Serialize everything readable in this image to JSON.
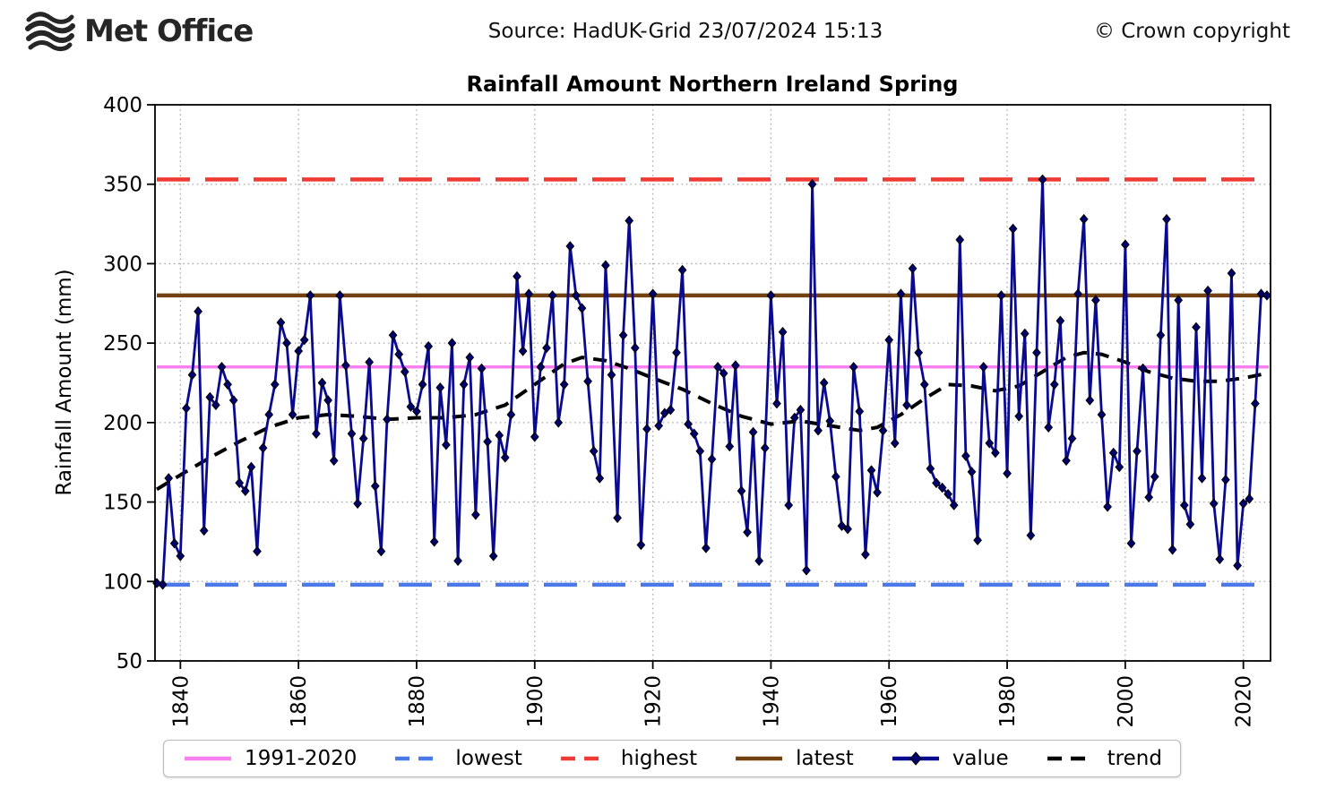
{
  "header": {
    "logo_text": "Met Office",
    "source": "Source: HadUK-Grid 23/07/2024 15:13",
    "copyright": "© Crown copyright"
  },
  "legend": {
    "items": [
      {
        "label": "1991-2020",
        "style": "solid",
        "color": "#f87ff0"
      },
      {
        "label": "lowest",
        "style": "dashed",
        "color": "#4b79e8"
      },
      {
        "label": "highest",
        "style": "dashed",
        "color": "#ef3b33"
      },
      {
        "label": "latest",
        "style": "solid",
        "color": "#72410f"
      },
      {
        "label": "value",
        "style": "marker",
        "color": "#0a0a90"
      },
      {
        "label": "trend",
        "style": "dashed",
        "color": "#000000"
      }
    ]
  },
  "chart_data": {
    "type": "line",
    "title": "Rainfall Amount Northern Ireland Spring",
    "xlabel": "",
    "ylabel": "Rainfall Amount (mm)",
    "ylim": [
      50,
      400
    ],
    "xlim": [
      1835.7,
      2024.6
    ],
    "yticks": [
      50,
      100,
      150,
      200,
      250,
      300,
      350,
      400
    ],
    "xticks": [
      1840,
      1860,
      1880,
      1900,
      1920,
      1940,
      1960,
      1980,
      2000,
      2020
    ],
    "grid": true,
    "legend_position": "bottom",
    "reference_lines": [
      {
        "name": "highest",
        "value": 353,
        "color": "#ef3b33",
        "dash": "37 17",
        "width": 4.5
      },
      {
        "name": "latest",
        "value": 280,
        "color": "#72410f",
        "dash": "",
        "width": 4.5
      },
      {
        "name": "1991-2020",
        "value": 235,
        "color": "#f87ff0",
        "dash": "",
        "width": 3.6
      },
      {
        "name": "lowest",
        "value": 98,
        "color": "#4b79e8",
        "dash": "37 17",
        "width": 4.5
      }
    ],
    "series": [
      {
        "name": "value",
        "color": "#0a0a90",
        "marker": "diamond",
        "start_year": 1836,
        "values": [
          99,
          98,
          165,
          124,
          116,
          209,
          230,
          270,
          132,
          216,
          211,
          235,
          224,
          214,
          162,
          157,
          172,
          119,
          184,
          205,
          224,
          263,
          250,
          205,
          245,
          252,
          280,
          193,
          225,
          214,
          176,
          280,
          236,
          193,
          149,
          190,
          238,
          160,
          119,
          202,
          255,
          243,
          232,
          210,
          207,
          224,
          248,
          125,
          222,
          186,
          250,
          113,
          224,
          241,
          142,
          234,
          188,
          116,
          192,
          178,
          205,
          292,
          245,
          281,
          191,
          235,
          247,
          280,
          200,
          224,
          311,
          280,
          272,
          226,
          182,
          165,
          299,
          230,
          140,
          255,
          327,
          247,
          123,
          196,
          281,
          198,
          206,
          208,
          244,
          296,
          199,
          193,
          182,
          121,
          177,
          235,
          231,
          185,
          236,
          157,
          131,
          194,
          113,
          184,
          280,
          212,
          257,
          148,
          203,
          208,
          107,
          350,
          195,
          225,
          201,
          166,
          135,
          133,
          235,
          207,
          117,
          170,
          156,
          195,
          252,
          187,
          281,
          211,
          297,
          244,
          224,
          171,
          162,
          159,
          155,
          148,
          315,
          179,
          169,
          126,
          235,
          187,
          181,
          280,
          168,
          322,
          204,
          256,
          129,
          244,
          353,
          197,
          224,
          264,
          176,
          190,
          281,
          328,
          214,
          277,
          205,
          147,
          181,
          172,
          312,
          124,
          182,
          234,
          153,
          166,
          255,
          328,
          120,
          277,
          148,
          136,
          260,
          165,
          283,
          149,
          114,
          164,
          294,
          110,
          149,
          152,
          212,
          281,
          280
        ]
      }
    ],
    "trend": {
      "name": "trend",
      "color": "#000000",
      "points": [
        [
          1836,
          158
        ],
        [
          1840,
          167
        ],
        [
          1845,
          178
        ],
        [
          1850,
          188
        ],
        [
          1855,
          197
        ],
        [
          1860,
          203
        ],
        [
          1865,
          205
        ],
        [
          1870,
          204
        ],
        [
          1875,
          202
        ],
        [
          1880,
          203
        ],
        [
          1885,
          203
        ],
        [
          1890,
          205
        ],
        [
          1895,
          211
        ],
        [
          1900,
          224
        ],
        [
          1905,
          237
        ],
        [
          1908,
          241
        ],
        [
          1912,
          239
        ],
        [
          1916,
          234
        ],
        [
          1920,
          228
        ],
        [
          1925,
          221
        ],
        [
          1930,
          212
        ],
        [
          1935,
          204
        ],
        [
          1940,
          199
        ],
        [
          1945,
          201
        ],
        [
          1950,
          198
        ],
        [
          1955,
          195
        ],
        [
          1958,
          197
        ],
        [
          1962,
          205
        ],
        [
          1966,
          215
        ],
        [
          1970,
          224
        ],
        [
          1974,
          223
        ],
        [
          1978,
          220
        ],
        [
          1982,
          223
        ],
        [
          1986,
          232
        ],
        [
          1990,
          241
        ],
        [
          1993,
          244
        ],
        [
          1996,
          243
        ],
        [
          2000,
          238
        ],
        [
          2004,
          232
        ],
        [
          2008,
          228
        ],
        [
          2012,
          226
        ],
        [
          2016,
          226
        ],
        [
          2020,
          228
        ],
        [
          2024,
          231
        ]
      ]
    }
  }
}
